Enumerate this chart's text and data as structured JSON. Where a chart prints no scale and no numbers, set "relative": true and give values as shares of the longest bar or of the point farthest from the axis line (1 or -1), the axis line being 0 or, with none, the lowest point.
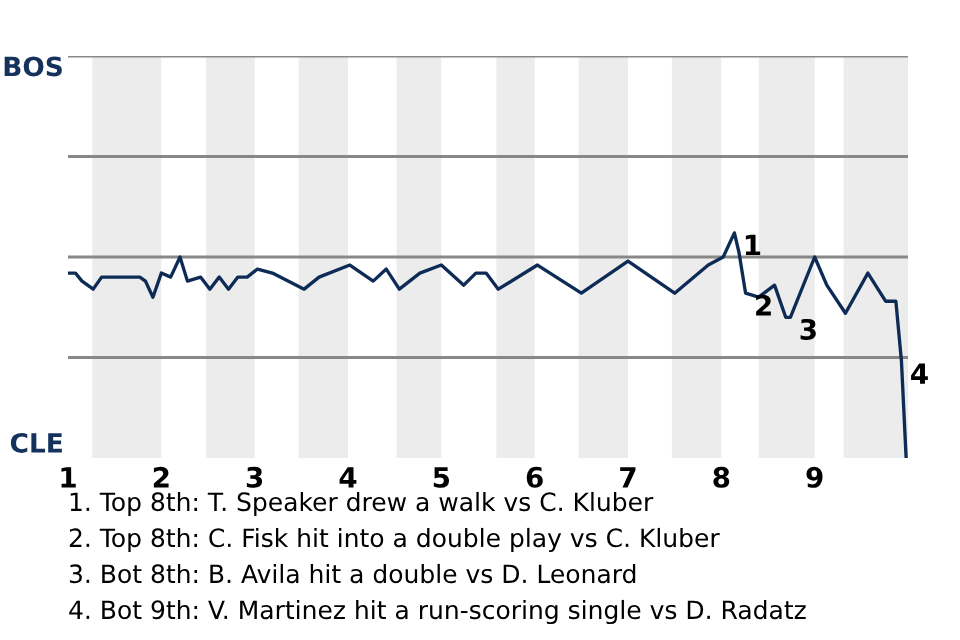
{
  "chart_data": {
    "type": "line",
    "relative": true,
    "x": [
      1.0,
      1.08,
      1.15,
      1.27,
      1.36,
      1.47,
      1.56,
      1.77,
      1.83,
      1.91,
      2.0,
      2.1,
      2.2,
      2.28,
      2.42,
      2.52,
      2.62,
      2.72,
      2.82,
      2.92,
      3.03,
      3.19,
      3.53,
      3.69,
      4.02,
      4.27,
      4.41,
      4.55,
      4.77,
      5.0,
      5.24,
      5.37,
      5.48,
      5.61,
      6.03,
      6.5,
      7.0,
      7.5,
      7.86,
      8.02,
      8.14,
      8.19,
      8.26,
      8.4,
      8.57,
      8.69,
      8.74,
      9.0,
      9.13,
      9.33,
      9.57,
      9.76,
      9.87,
      9.93,
      9.98
    ],
    "series": [
      {
        "color": "#0d2b55",
        "values": [
          -0.08,
          -0.08,
          -0.12,
          -0.16,
          -0.1,
          -0.1,
          -0.1,
          -0.1,
          -0.12,
          -0.2,
          -0.08,
          -0.1,
          0,
          -0.12,
          -0.1,
          -0.16,
          -0.1,
          -0.16,
          -0.1,
          -0.1,
          -0.06,
          -0.08,
          -0.16,
          -0.1,
          -0.04,
          -0.12,
          -0.06,
          -0.16,
          -0.08,
          -0.04,
          -0.14,
          -0.08,
          -0.08,
          -0.16,
          -0.04,
          -0.18,
          -0.02,
          -0.18,
          -0.04,
          0,
          0.12,
          0.02,
          -0.18,
          -0.2,
          -0.14,
          -0.3,
          -0.3,
          0,
          -0.14,
          -0.28,
          -0.08,
          -0.22,
          -0.22,
          -0.52,
          -1
        ]
      }
    ],
    "xlim": [
      1,
      10
    ],
    "xticks": [
      1,
      2,
      3,
      4,
      5,
      6,
      7,
      8,
      9
    ],
    "ref_lines": [
      {
        "axis": "y",
        "value": 1,
        "color": "#888888"
      },
      {
        "axis": "y",
        "value": 0.5,
        "color": "#888888"
      },
      {
        "axis": "y",
        "value": 0,
        "color": "#888888"
      },
      {
        "axis": "y",
        "value": -0.5,
        "color": "#888888"
      }
    ],
    "bands": [
      {
        "axis": "x",
        "from": 1.26,
        "to": 2,
        "color": "#ececec"
      },
      {
        "axis": "x",
        "from": 2.48,
        "to": 3,
        "color": "#ececec"
      },
      {
        "axis": "x",
        "from": 3.47,
        "to": 4,
        "color": "#ececec"
      },
      {
        "axis": "x",
        "from": 4.52,
        "to": 5,
        "color": "#ececec"
      },
      {
        "axis": "x",
        "from": 5.59,
        "to": 6,
        "color": "#ececec"
      },
      {
        "axis": "x",
        "from": 6.47,
        "to": 7,
        "color": "#ececec"
      },
      {
        "axis": "x",
        "from": 7.47,
        "to": 8,
        "color": "#ececec"
      },
      {
        "axis": "x",
        "from": 8.4,
        "to": 9,
        "color": "#ececec"
      },
      {
        "axis": "x",
        "from": 9.31,
        "to": 10,
        "color": "#ececec"
      }
    ],
    "annotations": [
      "BOS",
      "CLE",
      {
        "text": "1",
        "x": 8.14,
        "y": 0.12
      },
      {
        "text": "2",
        "x": 8.26,
        "y": -0.18
      },
      {
        "text": "3",
        "x": 8.74,
        "y": -0.3
      },
      {
        "text": "4",
        "x": 9.93,
        "y": -0.52
      },
      "1. Top 8th: T. Speaker drew a walk vs C. Kluber",
      "2. Top 8th: C. Fisk hit into a double play vs C. Kluber",
      "3. Bot 8th: B. Avila hit a double vs D. Leonard",
      "4. Bot 9th: V. Martinez hit a run-scoring single vs D. Radatz"
    ]
  }
}
